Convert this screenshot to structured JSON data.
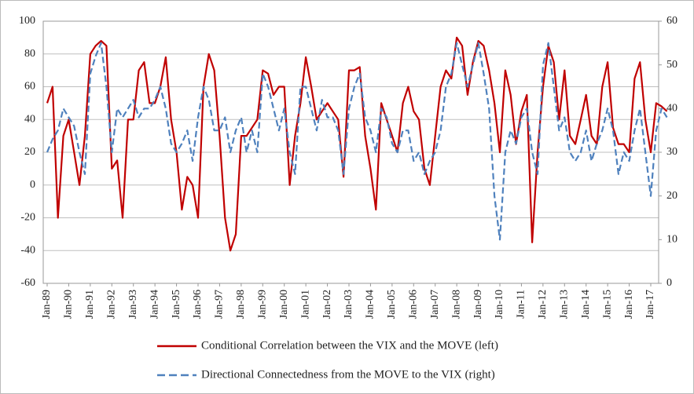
{
  "chart_data": {
    "type": "line",
    "x": [
      "Jan-89",
      "Apr-89",
      "Jul-89",
      "Oct-89",
      "Jan-90",
      "Apr-90",
      "Jul-90",
      "Oct-90",
      "Jan-91",
      "Apr-91",
      "Jul-91",
      "Oct-91",
      "Jan-92",
      "Apr-92",
      "Jul-92",
      "Oct-92",
      "Jan-93",
      "Apr-93",
      "Jul-93",
      "Oct-93",
      "Jan-94",
      "Apr-94",
      "Jul-94",
      "Oct-94",
      "Jan-95",
      "Apr-95",
      "Jul-95",
      "Oct-95",
      "Jan-96",
      "Apr-96",
      "Jul-96",
      "Oct-96",
      "Jan-97",
      "Apr-97",
      "Jul-97",
      "Oct-97",
      "Jan-98",
      "Apr-98",
      "Jul-98",
      "Oct-98",
      "Jan-99",
      "Apr-99",
      "Jul-99",
      "Oct-99",
      "Jan-00",
      "Apr-00",
      "Jul-00",
      "Oct-00",
      "Jan-01",
      "Apr-01",
      "Jul-01",
      "Oct-01",
      "Jan-02",
      "Apr-02",
      "Jul-02",
      "Oct-02",
      "Jan-03",
      "Apr-03",
      "Jul-03",
      "Oct-03",
      "Jan-04",
      "Apr-04",
      "Jul-04",
      "Oct-04",
      "Jan-05",
      "Apr-05",
      "Jul-05",
      "Oct-05",
      "Jan-06",
      "Apr-06",
      "Jul-06",
      "Oct-06",
      "Jan-07",
      "Apr-07",
      "Jul-07",
      "Oct-07",
      "Jan-08",
      "Apr-08",
      "Jul-08",
      "Oct-08",
      "Jan-09",
      "Apr-09",
      "Jul-09",
      "Oct-09",
      "Jan-10",
      "Apr-10",
      "Jul-10",
      "Oct-10",
      "Jan-11",
      "Apr-11",
      "Jul-11",
      "Oct-11",
      "Jan-12",
      "Apr-12",
      "Jul-12",
      "Oct-12",
      "Jan-13",
      "Apr-13",
      "Jul-13",
      "Oct-13",
      "Jan-14",
      "Apr-14",
      "Jul-14",
      "Oct-14",
      "Jan-15",
      "Apr-15",
      "Jul-15",
      "Oct-15",
      "Jan-16",
      "Apr-16",
      "Jul-16",
      "Oct-16",
      "Jan-17",
      "Apr-17",
      "Jul-17",
      "Oct-17"
    ],
    "series": [
      {
        "name": "Conditional Correlation between the VIX and the MOVE (left)",
        "color": "#c00000",
        "dash": false,
        "values": [
          50,
          60,
          -20,
          30,
          40,
          20,
          0,
          30,
          80,
          85,
          88,
          85,
          10,
          15,
          -20,
          40,
          40,
          70,
          75,
          50,
          50,
          60,
          78,
          40,
          20,
          -15,
          5,
          0,
          -20,
          60,
          80,
          70,
          30,
          -20,
          -40,
          -30,
          30,
          30,
          35,
          40,
          70,
          68,
          55,
          60,
          60,
          0,
          30,
          50,
          78,
          60,
          40,
          45,
          50,
          45,
          40,
          5,
          70,
          70,
          72,
          30,
          10,
          -15,
          50,
          40,
          30,
          20,
          50,
          60,
          45,
          40,
          10,
          0,
          30,
          60,
          70,
          65,
          90,
          85,
          55,
          75,
          88,
          85,
          70,
          50,
          20,
          70,
          55,
          25,
          45,
          55,
          -35,
          20,
          60,
          85,
          75,
          40,
          70,
          30,
          25,
          40,
          55,
          30,
          25,
          60,
          75,
          35,
          25,
          25,
          20,
          65,
          75,
          40,
          20,
          50,
          48,
          45
        ]
      },
      {
        "name": "Directional Connectedness from the MOVE to the VIX (right)",
        "color": "#4f81bd",
        "dash": true,
        "axis": "y2",
        "values": [
          30,
          33,
          35,
          40,
          38,
          36,
          30,
          25,
          48,
          52,
          55,
          45,
          30,
          40,
          38,
          40,
          42,
          38,
          40,
          40,
          42,
          45,
          40,
          32,
          30,
          32,
          35,
          28,
          38,
          45,
          42,
          35,
          35,
          38,
          30,
          35,
          38,
          30,
          35,
          30,
          48,
          45,
          40,
          35,
          40,
          30,
          25,
          45,
          45,
          40,
          35,
          42,
          38,
          38,
          35,
          25,
          40,
          45,
          48,
          38,
          35,
          30,
          40,
          38,
          32,
          30,
          35,
          35,
          28,
          30,
          25,
          28,
          30,
          35,
          45,
          48,
          55,
          50,
          45,
          50,
          55,
          48,
          40,
          20,
          10,
          30,
          35,
          32,
          38,
          40,
          30,
          25,
          50,
          55,
          45,
          35,
          38,
          30,
          28,
          30,
          35,
          28,
          32,
          35,
          40,
          35,
          25,
          30,
          28,
          35,
          40,
          30,
          20,
          35,
          40,
          38
        ]
      }
    ],
    "xticks": [
      "Jan-89",
      "Jan-90",
      "Jan-91",
      "Jan-92",
      "Jan-93",
      "Jan-94",
      "Jan-95",
      "Jan-96",
      "Jan-97",
      "Jan-98",
      "Jan-99",
      "Jan-00",
      "Jan-01",
      "Jan-02",
      "Jan-03",
      "Jan-04",
      "Jan-05",
      "Jan-06",
      "Jan-07",
      "Jan-08",
      "Jan-09",
      "Jan-10",
      "Jan-11",
      "Jan-12",
      "Jan-13",
      "Jan-14",
      "Jan-15",
      "Jan-16",
      "Jan-17"
    ],
    "ylim": [
      -60,
      100
    ],
    "yticks": [
      -60,
      -40,
      -20,
      0,
      20,
      40,
      60,
      80,
      100
    ],
    "y2lim": [
      0,
      60
    ],
    "y2ticks": [
      0,
      10,
      20,
      30,
      40,
      50,
      60
    ],
    "grid": true
  }
}
